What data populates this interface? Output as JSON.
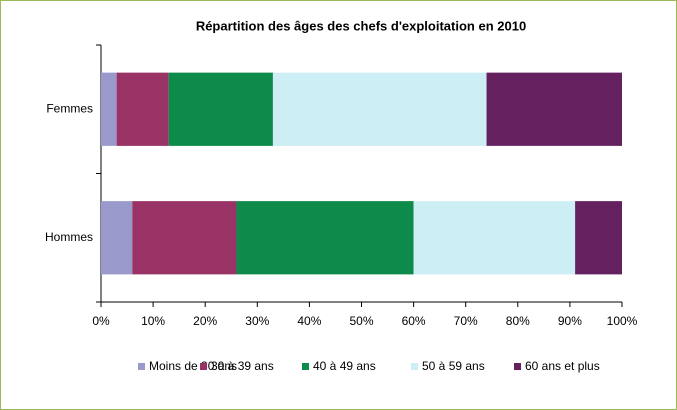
{
  "chart_data": {
    "type": "stacked-barh",
    "title": "Répartition des âges des chefs d'exploitation en 2010",
    "categories": [
      "Femmes",
      "Hommes"
    ],
    "series": [
      {
        "name": "Moins de 30 ans",
        "color": "#9999cc",
        "values": [
          3,
          6
        ]
      },
      {
        "name": "30 à 39 ans",
        "color": "#993366",
        "values": [
          10,
          20
        ]
      },
      {
        "name": "40 à 49 ans",
        "color": "#0e8a4a",
        "values": [
          20,
          34
        ]
      },
      {
        "name": "50 à 59 ans",
        "color": "#cdeef4",
        "values": [
          41,
          31
        ]
      },
      {
        "name": "60 ans et plus",
        "color": "#652060",
        "values": [
          26,
          9
        ]
      }
    ],
    "xlim": [
      0,
      100
    ],
    "xticks": [
      {
        "value": 0,
        "label": "0%"
      },
      {
        "value": 10,
        "label": "10%"
      },
      {
        "value": 20,
        "label": "20%"
      },
      {
        "value": 30,
        "label": "30%"
      },
      {
        "value": 40,
        "label": "40%"
      },
      {
        "value": 50,
        "label": "50%"
      },
      {
        "value": 60,
        "label": "60%"
      },
      {
        "value": 70,
        "label": "70%"
      },
      {
        "value": 80,
        "label": "80%"
      },
      {
        "value": 90,
        "label": "90%"
      },
      {
        "value": 100,
        "label": "100%"
      }
    ],
    "grid": false,
    "legend": "bottom"
  }
}
